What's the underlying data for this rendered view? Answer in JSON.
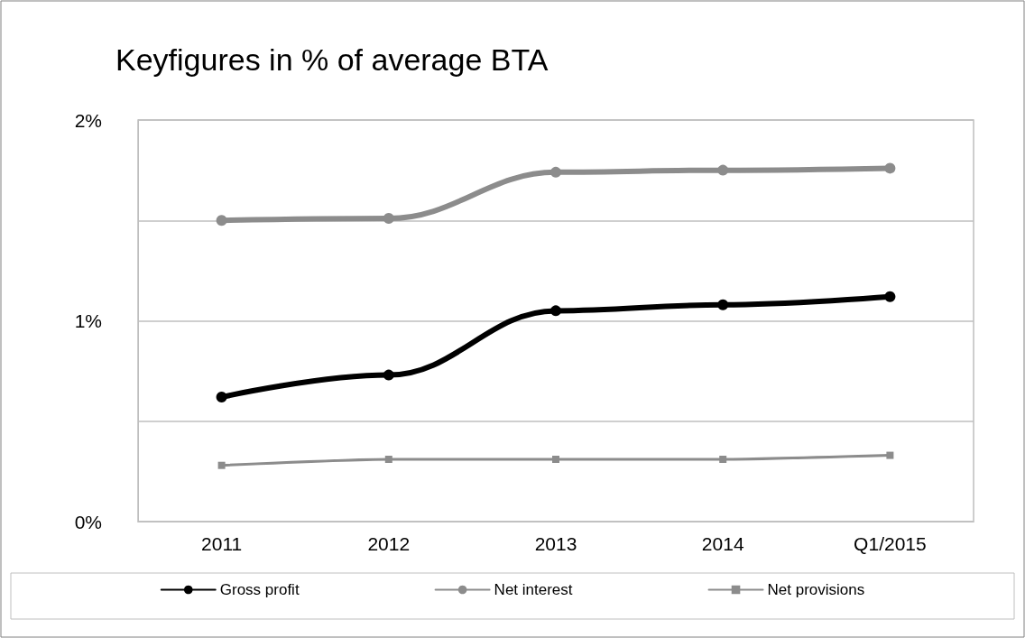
{
  "chart_data": {
    "type": "line",
    "title": "Keyfigures in % of average BTA",
    "categories": [
      "2011",
      "2012",
      "2013",
      "2014",
      "Q1/2015"
    ],
    "series": [
      {
        "name": "Gross profit",
        "color": "#000000",
        "marker": "circle",
        "values": [
          0.62,
          0.73,
          1.05,
          1.08,
          1.12
        ]
      },
      {
        "name": "Net interest",
        "color": "#8c8c8c",
        "marker": "circle",
        "values": [
          1.5,
          1.51,
          1.74,
          1.75,
          1.76
        ]
      },
      {
        "name": "Net provisions",
        "color": "#8c8c8c",
        "marker": "square",
        "values": [
          0.28,
          0.31,
          0.31,
          0.31,
          0.33
        ]
      }
    ],
    "ylim": [
      0,
      2
    ],
    "yticks": [
      {
        "value": 0,
        "label": "0%"
      },
      {
        "value": 0.5,
        "label": null
      },
      {
        "value": 1,
        "label": "1%"
      },
      {
        "value": 1.5,
        "label": null
      },
      {
        "value": 2,
        "label": "2%"
      }
    ],
    "grid": "y",
    "legend": "bottom"
  }
}
